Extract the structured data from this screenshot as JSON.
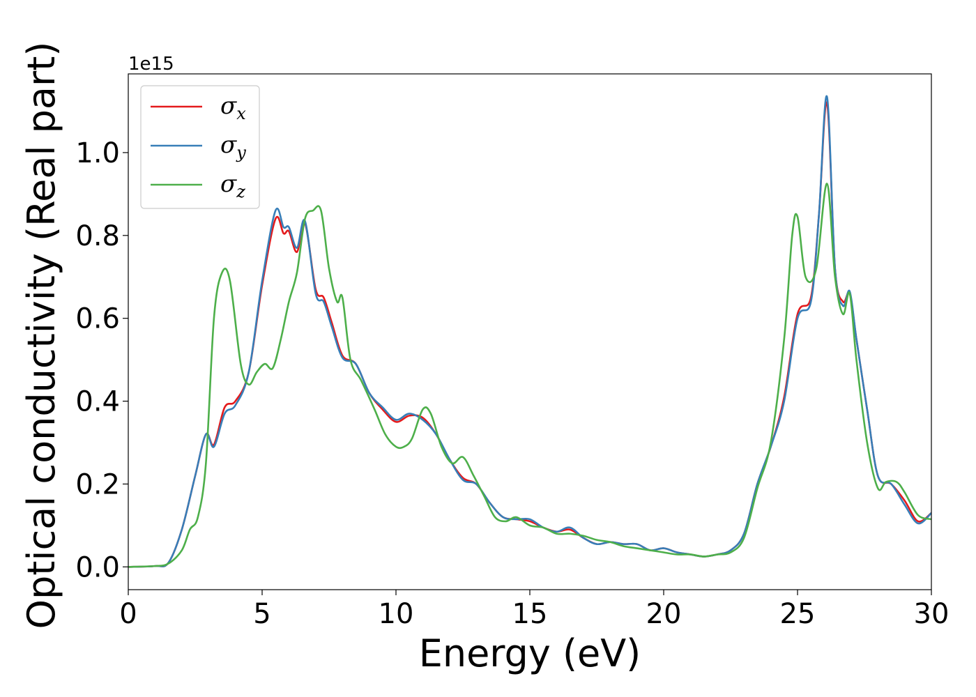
{
  "chart_data": {
    "type": "line",
    "xlabel": "Energy (eV)",
    "ylabel": "Optical conductivity (Real part)",
    "y_offset_label": "1e15",
    "xlim": [
      0,
      30
    ],
    "ylim": [
      -0.055,
      1.19
    ],
    "xticks": [
      0,
      5,
      10,
      15,
      20,
      25,
      30
    ],
    "xtick_labels": [
      "0",
      "5",
      "10",
      "15",
      "20",
      "25",
      "30"
    ],
    "yticks": [
      0.0,
      0.2,
      0.4,
      0.6,
      0.8,
      1.0
    ],
    "ytick_labels": [
      "0.0",
      "0.2",
      "0.4",
      "0.6",
      "0.8",
      "1.0"
    ],
    "grid": false,
    "legend_position": "top-left",
    "series": [
      {
        "name": "σ",
        "subscript": "x",
        "color": "#e41a1c",
        "x": [
          0,
          1,
          1.5,
          2,
          2.5,
          2.9,
          3.2,
          3.6,
          4.0,
          4.5,
          5.0,
          5.5,
          5.8,
          6.0,
          6.3,
          6.6,
          7.0,
          7.3,
          7.6,
          8.0,
          8.5,
          9.0,
          9.5,
          10.0,
          10.5,
          11.0,
          11.5,
          12.0,
          12.5,
          13.0,
          13.5,
          14.0,
          14.5,
          15.0,
          15.5,
          16.0,
          16.5,
          17.0,
          17.5,
          18.0,
          18.5,
          19.0,
          19.5,
          20.0,
          20.5,
          21.0,
          21.5,
          22.0,
          22.5,
          23.0,
          23.5,
          24.0,
          24.5,
          25.0,
          25.5,
          25.8,
          26.1,
          26.4,
          26.7,
          26.95,
          27.2,
          27.6,
          28.0,
          28.5,
          29.0,
          29.5,
          30.0
        ],
        "y": [
          0.0,
          0.002,
          0.01,
          0.09,
          0.22,
          0.32,
          0.295,
          0.385,
          0.4,
          0.47,
          0.68,
          0.84,
          0.805,
          0.81,
          0.76,
          0.83,
          0.67,
          0.65,
          0.59,
          0.51,
          0.49,
          0.42,
          0.38,
          0.35,
          0.365,
          0.36,
          0.32,
          0.26,
          0.215,
          0.2,
          0.155,
          0.12,
          0.115,
          0.11,
          0.095,
          0.085,
          0.09,
          0.07,
          0.055,
          0.06,
          0.055,
          0.055,
          0.04,
          0.045,
          0.035,
          0.03,
          0.025,
          0.03,
          0.04,
          0.08,
          0.2,
          0.29,
          0.41,
          0.61,
          0.65,
          0.85,
          1.12,
          0.72,
          0.64,
          0.66,
          0.55,
          0.38,
          0.22,
          0.2,
          0.16,
          0.11,
          0.13
        ]
      },
      {
        "name": "σ",
        "subscript": "y",
        "color": "#377eb8",
        "x": [
          0,
          1,
          1.5,
          2,
          2.5,
          2.9,
          3.2,
          3.6,
          4.0,
          4.5,
          5.0,
          5.5,
          5.8,
          6.0,
          6.3,
          6.6,
          7.0,
          7.3,
          7.6,
          8.0,
          8.5,
          9.0,
          9.5,
          10.0,
          10.5,
          11.0,
          11.5,
          12.0,
          12.5,
          13.0,
          13.5,
          14.0,
          14.5,
          15.0,
          15.5,
          16.0,
          16.5,
          17.0,
          17.5,
          18.0,
          18.5,
          19.0,
          19.5,
          20.0,
          20.5,
          21.0,
          21.5,
          22.0,
          22.5,
          23.0,
          23.5,
          24.0,
          24.5,
          25.0,
          25.5,
          25.8,
          26.1,
          26.4,
          26.7,
          26.95,
          27.2,
          27.6,
          28.0,
          28.5,
          29.0,
          29.5,
          30.0
        ],
        "y": [
          0.0,
          0.002,
          0.01,
          0.09,
          0.22,
          0.32,
          0.29,
          0.37,
          0.39,
          0.47,
          0.69,
          0.86,
          0.82,
          0.82,
          0.77,
          0.835,
          0.66,
          0.64,
          0.58,
          0.505,
          0.49,
          0.42,
          0.385,
          0.355,
          0.37,
          0.355,
          0.32,
          0.26,
          0.21,
          0.2,
          0.155,
          0.12,
          0.115,
          0.115,
          0.095,
          0.085,
          0.095,
          0.07,
          0.055,
          0.06,
          0.055,
          0.055,
          0.04,
          0.045,
          0.035,
          0.03,
          0.025,
          0.03,
          0.04,
          0.08,
          0.2,
          0.29,
          0.4,
          0.6,
          0.64,
          0.85,
          1.135,
          0.72,
          0.63,
          0.665,
          0.55,
          0.38,
          0.22,
          0.2,
          0.15,
          0.105,
          0.13
        ]
      },
      {
        "name": "σ",
        "subscript": "z",
        "color": "#4daf4a",
        "x": [
          0,
          1,
          1.5,
          2,
          2.3,
          2.6,
          2.9,
          3.2,
          3.5,
          3.8,
          4.2,
          4.5,
          4.8,
          5.1,
          5.4,
          5.7,
          6.0,
          6.3,
          6.6,
          6.9,
          7.2,
          7.5,
          7.8,
          8.0,
          8.3,
          8.7,
          9.2,
          9.6,
          10.0,
          10.3,
          10.6,
          11.0,
          11.3,
          11.7,
          12.1,
          12.5,
          12.9,
          13.3,
          13.7,
          14.1,
          14.5,
          15.0,
          15.5,
          16.0,
          16.5,
          17.0,
          17.5,
          18.0,
          18.5,
          19.0,
          19.5,
          20.0,
          20.5,
          21.0,
          21.5,
          22.0,
          22.5,
          23.0,
          23.5,
          24.0,
          24.5,
          24.8,
          25.0,
          25.3,
          25.7,
          26.1,
          26.4,
          26.7,
          26.95,
          27.2,
          27.6,
          28.0,
          28.3,
          28.7,
          29.0,
          29.5,
          30.0
        ],
        "y": [
          0.0,
          0.002,
          0.008,
          0.04,
          0.09,
          0.12,
          0.25,
          0.6,
          0.71,
          0.69,
          0.49,
          0.44,
          0.47,
          0.49,
          0.48,
          0.55,
          0.64,
          0.71,
          0.84,
          0.86,
          0.86,
          0.72,
          0.64,
          0.65,
          0.5,
          0.45,
          0.38,
          0.32,
          0.29,
          0.29,
          0.31,
          0.38,
          0.37,
          0.29,
          0.25,
          0.265,
          0.22,
          0.17,
          0.12,
          0.11,
          0.12,
          0.1,
          0.095,
          0.08,
          0.08,
          0.075,
          0.065,
          0.06,
          0.05,
          0.045,
          0.04,
          0.035,
          0.03,
          0.03,
          0.025,
          0.03,
          0.035,
          0.07,
          0.19,
          0.3,
          0.55,
          0.8,
          0.845,
          0.7,
          0.72,
          0.925,
          0.7,
          0.61,
          0.66,
          0.5,
          0.3,
          0.19,
          0.205,
          0.205,
          0.18,
          0.125,
          0.115
        ]
      }
    ]
  }
}
